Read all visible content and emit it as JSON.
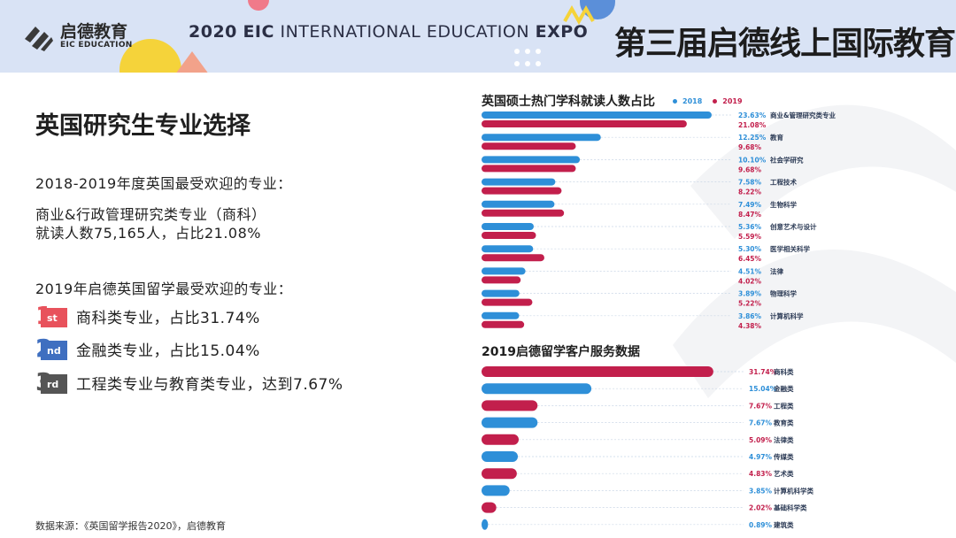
{
  "header": {
    "logo_cn": "启德教育",
    "logo_en": "EIC EDUCATION",
    "expo_year": "2020",
    "expo_mid": "EIC INTERNATIONAL EDUCATION",
    "expo_end": "EXPO",
    "cn_title": "第三届启德线上国际教育展"
  },
  "left": {
    "title": "英国研究生专业选择",
    "line1": "2018-2019年度英国最受欢迎的专业：",
    "line2": "商业&行政管理研究类专业（商科）",
    "line3": "就读人数75,165人，占比21.08%",
    "line4": "2019年启德英国留学最受欢迎的专业：",
    "ranks": [
      {
        "num": "1",
        "suffix": "st",
        "text": "商科类专业，占比31.74%",
        "color": "#e8525c"
      },
      {
        "num": "2",
        "suffix": "nd",
        "text": "金融类专业，占比15.04%",
        "color": "#3f6fc0"
      },
      {
        "num": "3",
        "suffix": "rd",
        "text": "工程类专业与教育类专业，达到7.67%",
        "color": "#555555"
      }
    ],
    "source": "数据来源：《英国留学报告2020》，启德教育"
  },
  "colors": {
    "blue": "#2e8fd8",
    "red": "#c21f4c"
  },
  "chart_data": [
    {
      "type": "bar",
      "orientation": "horizontal",
      "title": "英国硕士热门学科就读人数占比",
      "legend": [
        "2018",
        "2019"
      ],
      "legend_placement": "top-right",
      "categories": [
        "商业&管理研究类专业",
        "教育",
        "社会学研究",
        "工程技术",
        "生物科学",
        "创意艺术与设计",
        "医学相关科学",
        "法律",
        "物理科学",
        "计算机科学"
      ],
      "series": [
        {
          "name": "2018",
          "color": "#2e8fd8",
          "values": [
            23.63,
            12.25,
            10.1,
            7.58,
            7.49,
            5.36,
            5.3,
            4.51,
            3.89,
            3.86
          ],
          "labels": [
            "23.63%",
            "12.25%",
            "10.10%",
            "7.58%",
            "7.49%",
            "5.36%",
            "5.30%",
            "4.51%",
            "3.89%",
            "3.86%"
          ]
        },
        {
          "name": "2019",
          "color": "#c21f4c",
          "values": [
            21.08,
            9.68,
            9.68,
            8.22,
            8.47,
            5.59,
            6.45,
            4.02,
            5.22,
            4.38
          ],
          "labels": [
            "21.08%",
            "9.68%",
            "9.68%",
            "8.22%",
            "8.47%",
            "5.59%",
            "6.45%",
            "4.02%",
            "5.22%",
            "4.38%"
          ]
        }
      ]
    },
    {
      "type": "bar",
      "orientation": "horizontal",
      "title": "2019启德留学客户服务数据",
      "categories": [
        "商科类",
        "金融类",
        "工程类",
        "教育类",
        "法律类",
        "传媒类",
        "艺术类",
        "计算机科学类",
        "基础科学类",
        "建筑类"
      ],
      "values": [
        31.74,
        15.04,
        7.67,
        7.67,
        5.09,
        4.97,
        4.83,
        3.85,
        2.02,
        0.89
      ],
      "labels": [
        "31.74%",
        "15.04%",
        "7.67%",
        "7.67%",
        "5.09%",
        "4.97%",
        "4.83%",
        "3.85%",
        "2.02%",
        "0.89%"
      ],
      "colors": [
        "#c21f4c",
        "#2e8fd8",
        "#c21f4c",
        "#2e8fd8",
        "#c21f4c",
        "#2e8fd8",
        "#c21f4c",
        "#2e8fd8",
        "#c21f4c",
        "#2e8fd8"
      ]
    }
  ]
}
